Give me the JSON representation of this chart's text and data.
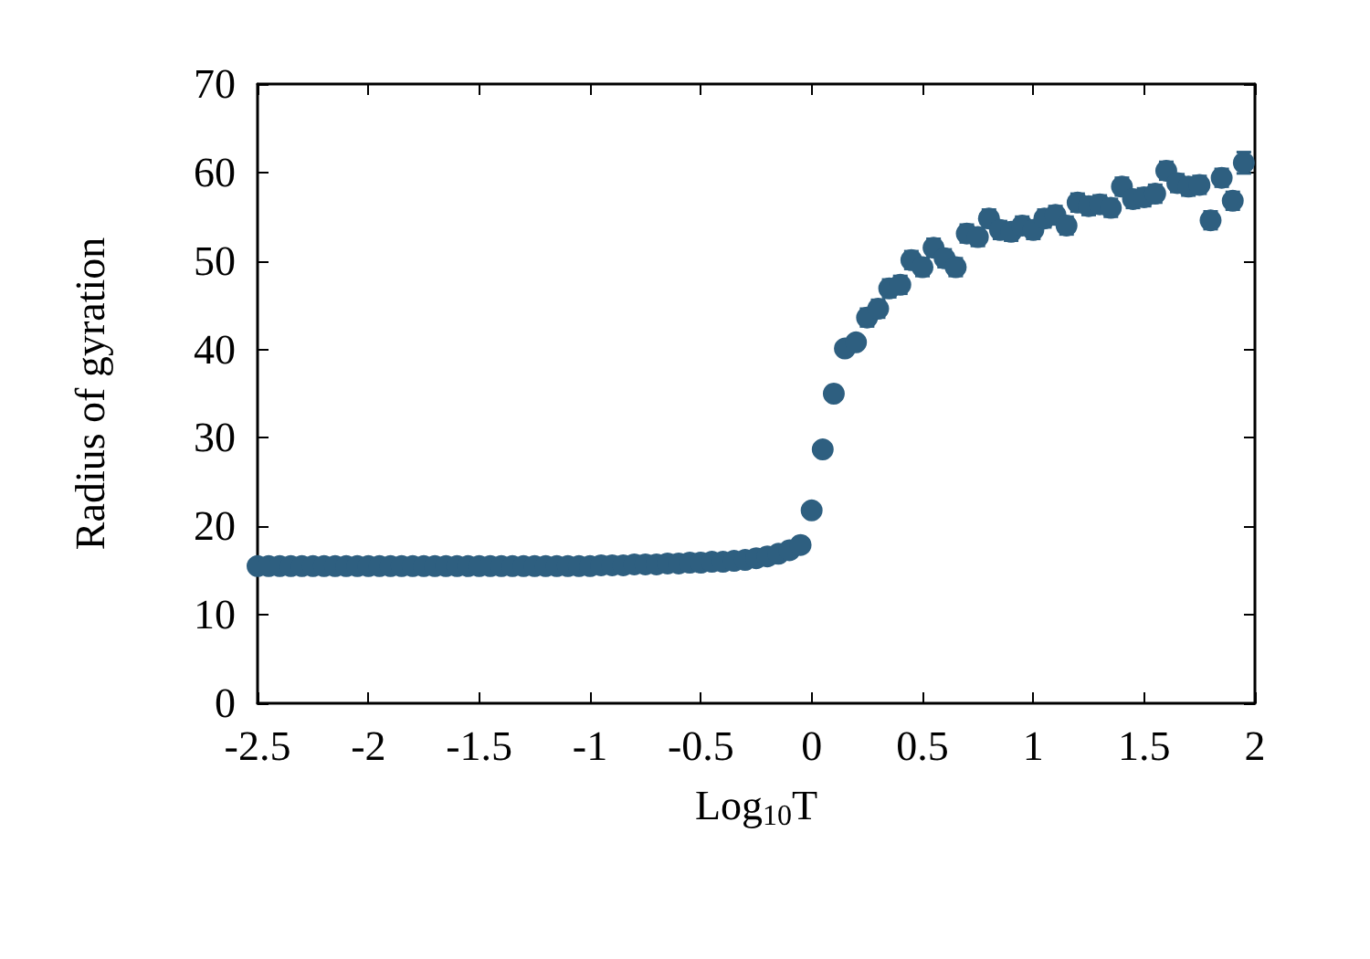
{
  "chart_data": {
    "type": "scatter",
    "xlabel": "Log$_{10}$T",
    "ylabel": "Radius of gyration",
    "x": [
      -2.5,
      -2.45,
      -2.4,
      -2.35,
      -2.3,
      -2.25,
      -2.2,
      -2.15,
      -2.1,
      -2.05,
      -2.0,
      -1.95,
      -1.9,
      -1.85,
      -1.8,
      -1.75,
      -1.7,
      -1.65,
      -1.6,
      -1.55,
      -1.5,
      -1.45,
      -1.4,
      -1.35,
      -1.3,
      -1.25,
      -1.2,
      -1.15,
      -1.1,
      -1.05,
      -1.0,
      -0.95,
      -0.9,
      -0.85,
      -0.8,
      -0.75,
      -0.7,
      -0.65,
      -0.6,
      -0.55,
      -0.5,
      -0.45,
      -0.4,
      -0.35,
      -0.3,
      -0.25,
      -0.2,
      -0.15,
      -0.1,
      -0.05,
      0.0,
      0.05,
      0.1,
      0.15,
      0.2,
      0.25,
      0.3,
      0.35,
      0.4,
      0.45,
      0.5,
      0.55,
      0.6,
      0.65,
      0.7,
      0.75,
      0.8,
      0.85,
      0.9,
      0.95,
      1.0,
      1.05,
      1.1,
      1.15,
      1.2,
      1.25,
      1.3,
      1.35,
      1.4,
      1.45,
      1.5,
      1.55,
      1.6,
      1.65,
      1.7,
      1.75,
      1.8,
      1.85,
      1.9,
      1.95
    ],
    "series": [
      {
        "color": "#2e5f80",
        "values": [
          15.5,
          15.5,
          15.5,
          15.5,
          15.5,
          15.5,
          15.5,
          15.5,
          15.5,
          15.5,
          15.5,
          15.5,
          15.5,
          15.5,
          15.5,
          15.5,
          15.5,
          15.5,
          15.5,
          15.5,
          15.5,
          15.5,
          15.5,
          15.5,
          15.5,
          15.5,
          15.5,
          15.5,
          15.5,
          15.5,
          15.5,
          15.6,
          15.6,
          15.6,
          15.7,
          15.7,
          15.7,
          15.8,
          15.8,
          15.9,
          15.9,
          16.0,
          16.0,
          16.1,
          16.2,
          16.4,
          16.6,
          16.9,
          17.3,
          17.9,
          21.8,
          28.7,
          35.0,
          40.1,
          40.8,
          43.6,
          44.6,
          46.9,
          47.3,
          50.1,
          49.3,
          51.5,
          50.3,
          49.3,
          53.1,
          52.7,
          54.8,
          53.5,
          53.3,
          54.0,
          53.5,
          54.8,
          55.2,
          54.0,
          56.6,
          56.2,
          56.4,
          56.0,
          58.4,
          57.0,
          57.2,
          57.6,
          60.2,
          58.8,
          58.4,
          58.6,
          54.6,
          59.4,
          56.8,
          61.1
        ],
        "errors": [
          null,
          null,
          null,
          null,
          null,
          null,
          null,
          null,
          null,
          null,
          null,
          null,
          null,
          null,
          null,
          null,
          null,
          null,
          null,
          null,
          null,
          null,
          null,
          null,
          null,
          null,
          null,
          null,
          null,
          null,
          null,
          null,
          null,
          null,
          null,
          null,
          null,
          null,
          null,
          null,
          null,
          null,
          null,
          null,
          null,
          null,
          null,
          null,
          null,
          null,
          null,
          null,
          null,
          null,
          null,
          1,
          1,
          1,
          1,
          1,
          1,
          1,
          1,
          1,
          1,
          1,
          1,
          1,
          1,
          1,
          1,
          1,
          1,
          1,
          1,
          1,
          1,
          1,
          1,
          1,
          1,
          1,
          1,
          1,
          1,
          1,
          1,
          1,
          1,
          1.2
        ]
      }
    ],
    "xlim": [
      -2.5,
      2
    ],
    "xticks": [
      -2.5,
      -2,
      -1.5,
      -1,
      -0.5,
      0,
      0.5,
      1,
      1.5,
      2
    ],
    "ylim": [
      0,
      70
    ],
    "yticks": [
      0,
      10,
      20,
      30,
      40,
      50,
      60,
      70
    ],
    "marker": "circle",
    "grid": false
  }
}
